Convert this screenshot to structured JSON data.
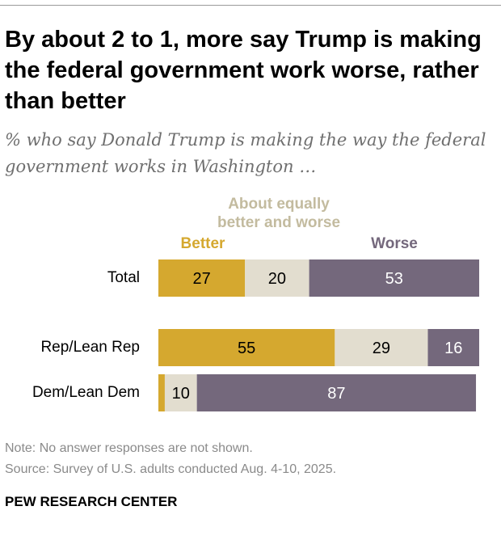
{
  "title": "By about 2 to 1, more say Trump is making the federal government work worse, rather than better",
  "subtitle": "% who say Donald Trump is making the way the federal government works in Washington …",
  "legend": {
    "better": "Better",
    "equal": "About equally better and worse",
    "worse": "Worse"
  },
  "colors": {
    "better": "#d5a82f",
    "equal": "#e2ddcf",
    "worse": "#74687c",
    "equal_label": "#c3bb9f"
  },
  "chart_data": {
    "type": "bar",
    "orientation": "horizontal",
    "stacked": true,
    "categories": [
      "Total",
      "Rep/Lean Rep",
      "Dem/Lean Dem"
    ],
    "series": [
      {
        "name": "Better",
        "values": [
          27,
          55,
          2
        ]
      },
      {
        "name": "About equally better and worse",
        "values": [
          20,
          29,
          10
        ]
      },
      {
        "name": "Worse",
        "values": [
          53,
          16,
          87
        ]
      }
    ],
    "data_labels": [
      [
        "27",
        "20",
        "53"
      ],
      [
        "55",
        "29",
        "16"
      ],
      [
        "",
        "10",
        "87"
      ]
    ],
    "xlim": [
      0,
      100
    ]
  },
  "notes": {
    "note": "Note: No answer responses are not shown.",
    "source": "Source: Survey of U.S. adults conducted Aug. 4-10, 2025."
  },
  "brand": "PEW RESEARCH CENTER"
}
